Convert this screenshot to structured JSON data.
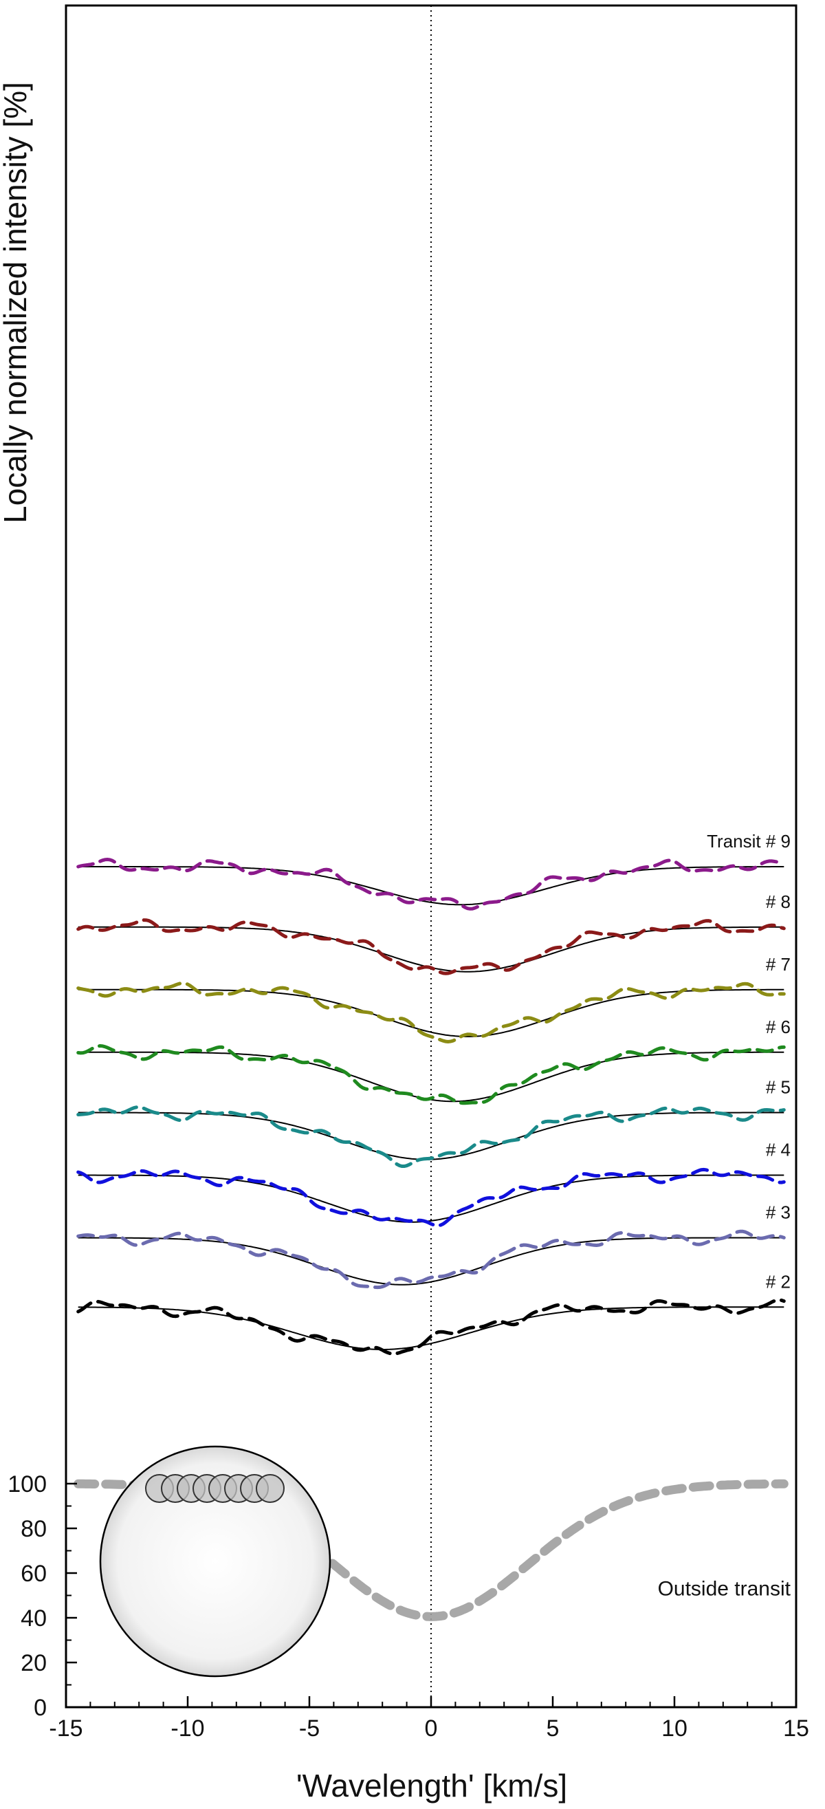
{
  "chart_data": {
    "type": "line",
    "xlabel": "'Wavelength' [km/s]",
    "ylabel": "Locally normalized intensity [%]",
    "xlim": [
      -15,
      15
    ],
    "ylim": [
      0,
      130
    ],
    "x_ticks": [
      -15,
      -10,
      -5,
      0,
      5,
      10,
      15
    ],
    "y_ticks": [
      0,
      20,
      40,
      60,
      80,
      100
    ],
    "grid": false,
    "reference_line_x": 0,
    "outside_transit": {
      "label": "Outside transit",
      "color": "#9e9e9e",
      "model": {
        "continuum": 100,
        "depth": 59.5,
        "center": 0.0,
        "sigma": 4.0
      }
    },
    "transits": [
      {
        "label": "# 2",
        "color": "#000000",
        "model": {
          "offset_from_100": 79,
          "depth": 19,
          "center": -2.0,
          "sigma": 3.6
        }
      },
      {
        "label": "# 3",
        "color": "#6b6baf",
        "model": {
          "offset_from_100": 110,
          "depth": 21,
          "center": -1.2,
          "sigma": 3.4
        }
      },
      {
        "label": "# 4",
        "color": "#1010dd",
        "model": {
          "offset_from_100": 138,
          "depth": 21,
          "center": -0.8,
          "sigma": 3.4
        }
      },
      {
        "label": "# 5",
        "color": "#1a8a8a",
        "model": {
          "offset_from_100": 166,
          "depth": 21,
          "center": -0.2,
          "sigma": 3.4
        }
      },
      {
        "label": "# 6",
        "color": "#1f8a1f",
        "model": {
          "offset_from_100": 193,
          "depth": 22,
          "center": 0.9,
          "sigma": 3.4
        }
      },
      {
        "label": "# 7",
        "color": "#8c8c14",
        "model": {
          "offset_from_100": 221,
          "depth": 21,
          "center": 1.5,
          "sigma": 3.4
        }
      },
      {
        "label": "# 8",
        "color": "#8b1a1a",
        "model": {
          "offset_from_100": 249,
          "depth": 20,
          "center": 1.5,
          "sigma": 3.4
        }
      },
      {
        "label": "Transit # 9",
        "color": "#8b1a8b",
        "model": {
          "offset_from_100": 276,
          "depth": 17,
          "center": 1.2,
          "sigma": 3.4
        }
      }
    ]
  }
}
